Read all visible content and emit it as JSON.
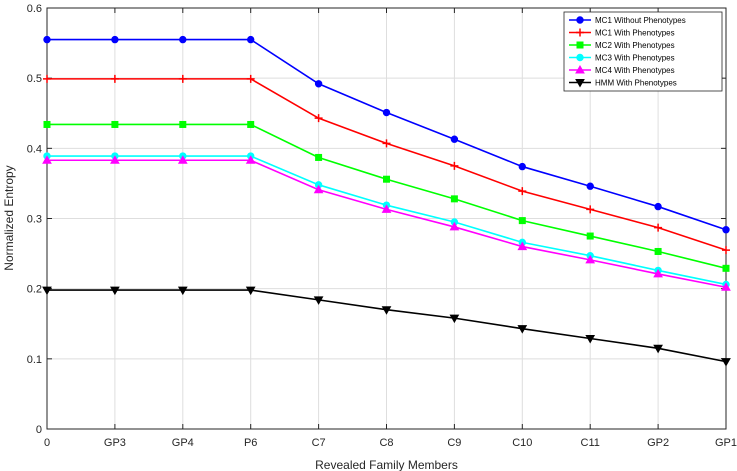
{
  "chart_data": {
    "type": "line",
    "xlabel": "Revealed Family Members",
    "ylabel": "Normalized Entropy",
    "ylim": [
      0,
      0.6
    ],
    "yticks": [
      0,
      0.1,
      0.2,
      0.3,
      0.4,
      0.5,
      0.6
    ],
    "ytick_labels": [
      "0",
      "0.1",
      "0.2",
      "0.3",
      "0.4",
      "0.5",
      "0.6"
    ],
    "categories": [
      "0",
      "GP3",
      "GP4",
      "P6",
      "C7",
      "C8",
      "C9",
      "C10",
      "C11",
      "GP2",
      "GP1"
    ],
    "grid": true,
    "legend_position": "top-right",
    "series": [
      {
        "name": "MC1 Without Phenotypes",
        "color": "#0000ff",
        "marker": "circle",
        "values": [
          0.555,
          0.555,
          0.555,
          0.555,
          0.492,
          0.451,
          0.413,
          0.374,
          0.346,
          0.317,
          0.284
        ]
      },
      {
        "name": "MC1 With Phenotypes",
        "color": "#ff0000",
        "marker": "plus",
        "values": [
          0.499,
          0.499,
          0.499,
          0.499,
          0.443,
          0.407,
          0.375,
          0.339,
          0.313,
          0.287,
          0.255
        ]
      },
      {
        "name": "MC2 With Phenotypes",
        "color": "#00ff00",
        "marker": "square",
        "values": [
          0.434,
          0.434,
          0.434,
          0.434,
          0.387,
          0.356,
          0.328,
          0.297,
          0.275,
          0.253,
          0.229
        ]
      },
      {
        "name": "MC3 With Phenotypes",
        "color": "#00ffff",
        "marker": "circle",
        "values": [
          0.389,
          0.389,
          0.389,
          0.389,
          0.348,
          0.319,
          0.295,
          0.266,
          0.247,
          0.226,
          0.206
        ]
      },
      {
        "name": "MC4 With Phenotypes",
        "color": "#ff00ff",
        "marker": "triangle-up",
        "values": [
          0.383,
          0.383,
          0.383,
          0.383,
          0.341,
          0.313,
          0.288,
          0.26,
          0.241,
          0.221,
          0.202
        ]
      },
      {
        "name": "HMM With Phenotypes",
        "color": "#000000",
        "marker": "triangle-down",
        "values": [
          0.198,
          0.198,
          0.198,
          0.198,
          0.184,
          0.17,
          0.158,
          0.143,
          0.129,
          0.115,
          0.096
        ]
      }
    ]
  }
}
